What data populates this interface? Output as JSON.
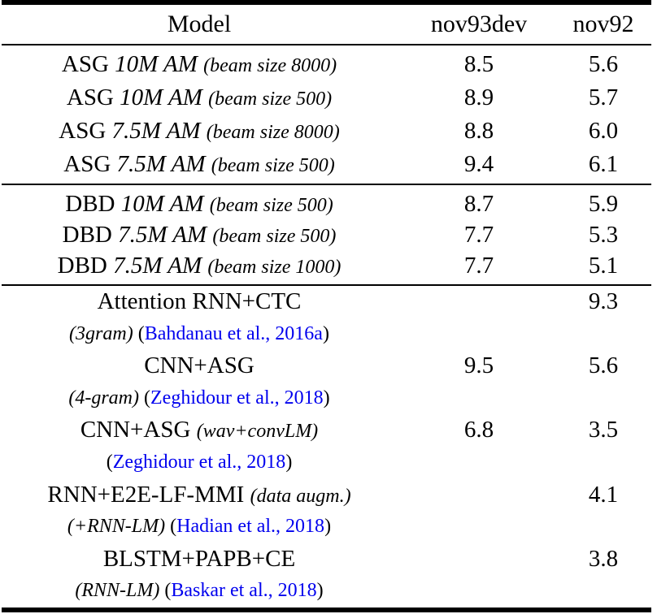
{
  "page": {
    "background": "#ffffff",
    "text_color": "#000000",
    "link_color": "#0000ee",
    "rule_color": "#000000"
  },
  "table": {
    "header": {
      "model": "Model",
      "nov93dev": "nov93dev",
      "nov92": "nov92"
    },
    "sections": [
      {
        "rows": [
          {
            "lines": [
              [
                {
                  "t": "ASG ",
                  "s": "r"
                },
                {
                  "t": "10M AM ",
                  "s": "i"
                },
                {
                  "t": "(beam size 8000)",
                  "s": "n"
                }
              ]
            ],
            "v1": "8.5",
            "v2": "5.6"
          },
          {
            "lines": [
              [
                {
                  "t": "ASG ",
                  "s": "r"
                },
                {
                  "t": "10M AM ",
                  "s": "i"
                },
                {
                  "t": "(beam size 500)",
                  "s": "n"
                }
              ]
            ],
            "v1": "8.9",
            "v2": "5.7"
          },
          {
            "lines": [
              [
                {
                  "t": "ASG ",
                  "s": "r"
                },
                {
                  "t": "7.5M AM ",
                  "s": "i"
                },
                {
                  "t": "(beam size 8000)",
                  "s": "n"
                }
              ]
            ],
            "v1": "8.8",
            "v2": "6.0"
          },
          {
            "lines": [
              [
                {
                  "t": "ASG ",
                  "s": "r"
                },
                {
                  "t": "7.5M AM ",
                  "s": "i"
                },
                {
                  "t": "(beam size 500)",
                  "s": "n"
                }
              ]
            ],
            "v1": "9.4",
            "v2": "6.1"
          }
        ]
      },
      {
        "rows": [
          {
            "lines": [
              [
                {
                  "t": "DBD ",
                  "s": "r"
                },
                {
                  "t": "10M AM ",
                  "s": "i"
                },
                {
                  "t": "(beam size 500)",
                  "s": "n"
                }
              ]
            ],
            "v1": "8.7",
            "v2": "5.9"
          },
          {
            "lines": [
              [
                {
                  "t": "DBD ",
                  "s": "r"
                },
                {
                  "t": "7.5M AM ",
                  "s": "i"
                },
                {
                  "t": "(beam size 500)",
                  "s": "n"
                }
              ]
            ],
            "v1": "7.7",
            "v2": "5.3"
          },
          {
            "lines": [
              [
                {
                  "t": "DBD ",
                  "s": "r"
                },
                {
                  "t": "7.5M AM ",
                  "s": "i"
                },
                {
                  "t": "(beam size 1000)",
                  "s": "n"
                }
              ]
            ],
            "v1": "7.7",
            "v2": "5.1"
          }
        ]
      },
      {
        "rows": [
          {
            "lines": [
              [
                {
                  "t": "Attention RNN+CTC",
                  "s": "r"
                }
              ],
              [
                {
                  "t": "(3gram) ",
                  "s": "n"
                },
                {
                  "t": "(",
                  "s": "p"
                },
                {
                  "t": "Bahdanau et al., 2016a",
                  "s": "c"
                },
                {
                  "t": ")",
                  "s": "p"
                }
              ]
            ],
            "v1": "",
            "v2": "9.3"
          },
          {
            "lines": [
              [
                {
                  "t": "CNN+ASG",
                  "s": "r"
                }
              ],
              [
                {
                  "t": "(4-gram) ",
                  "s": "n"
                },
                {
                  "t": "(",
                  "s": "p"
                },
                {
                  "t": "Zeghidour et al., 2018",
                  "s": "c"
                },
                {
                  "t": ")",
                  "s": "p"
                }
              ]
            ],
            "v1": "9.5",
            "v2": "5.6"
          },
          {
            "lines": [
              [
                {
                  "t": "CNN+ASG ",
                  "s": "r"
                },
                {
                  "t": "(wav+convLM)",
                  "s": "n"
                }
              ],
              [
                {
                  "t": "(",
                  "s": "p"
                },
                {
                  "t": "Zeghidour et al., 2018",
                  "s": "c"
                },
                {
                  "t": ")",
                  "s": "p"
                }
              ]
            ],
            "v1": "6.8",
            "v2": "3.5"
          },
          {
            "lines": [
              [
                {
                  "t": "RNN+E2E-LF-MMI ",
                  "s": "r"
                },
                {
                  "t": "(data augm.)",
                  "s": "n"
                }
              ],
              [
                {
                  "t": "(+RNN-LM) ",
                  "s": "n"
                },
                {
                  "t": "(",
                  "s": "p"
                },
                {
                  "t": "Hadian et al., 2018",
                  "s": "c"
                },
                {
                  "t": ")",
                  "s": "p"
                }
              ]
            ],
            "v1": "",
            "v2": "4.1"
          },
          {
            "lines": [
              [
                {
                  "t": "BLSTM+PAPB+CE",
                  "s": "r"
                }
              ],
              [
                {
                  "t": "(RNN-LM) ",
                  "s": "n"
                },
                {
                  "t": "(",
                  "s": "p"
                },
                {
                  "t": "Baskar et al., 2018",
                  "s": "c"
                },
                {
                  "t": ")",
                  "s": "p"
                }
              ]
            ],
            "v1": "",
            "v2": "3.8"
          }
        ]
      }
    ]
  },
  "chart_data": {
    "type": "table",
    "title": "",
    "columns": [
      "Model",
      "nov93dev",
      "nov92"
    ],
    "rows": [
      [
        "ASG 10M AM (beam size 8000)",
        8.5,
        5.6
      ],
      [
        "ASG 10M AM (beam size 500)",
        8.9,
        5.7
      ],
      [
        "ASG 7.5M AM (beam size 8000)",
        8.8,
        6.0
      ],
      [
        "ASG 7.5M AM (beam size 500)",
        9.4,
        6.1
      ],
      [
        "DBD 10M AM (beam size 500)",
        8.7,
        5.9
      ],
      [
        "DBD 7.5M AM (beam size 500)",
        7.7,
        5.3
      ],
      [
        "DBD 7.5M AM (beam size 1000)",
        7.7,
        5.1
      ],
      [
        "Attention RNN+CTC (3gram) (Bahdanau et al., 2016a)",
        null,
        9.3
      ],
      [
        "CNN+ASG (4-gram) (Zeghidour et al., 2018)",
        9.5,
        5.6
      ],
      [
        "CNN+ASG (wav+convLM) (Zeghidour et al., 2018)",
        6.8,
        3.5
      ],
      [
        "RNN+E2E-LF-MMI (data augm.) (+RNN-LM) (Hadian et al., 2018)",
        null,
        4.1
      ],
      [
        "BLSTM+PAPB+CE (RNN-LM) (Baskar et al., 2018)",
        null,
        3.8
      ]
    ]
  }
}
